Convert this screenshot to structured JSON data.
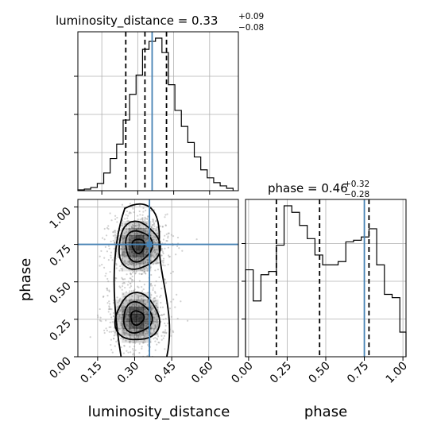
{
  "chart_data": [
    {
      "type": "histogram",
      "panel": "marginal-top-left",
      "title": {
        "text": "luminosity_distance = 0.33",
        "upper": "+0.09",
        "lower": "−0.08"
      },
      "x_range": [
        0.05,
        0.72
      ],
      "bins": [
        0.05,
        0.077,
        0.104,
        0.131,
        0.158,
        0.185,
        0.212,
        0.239,
        0.266,
        0.293,
        0.32,
        0.347,
        0.374,
        0.401,
        0.428,
        0.455,
        0.482,
        0.509,
        0.536,
        0.563,
        0.59,
        0.617,
        0.644,
        0.671,
        0.698
      ],
      "counts": [
        0.005,
        0.01,
        0.02,
        0.045,
        0.11,
        0.2,
        0.29,
        0.44,
        0.6,
        0.72,
        0.88,
        0.93,
        0.95,
        0.86,
        0.66,
        0.5,
        0.4,
        0.3,
        0.21,
        0.13,
        0.08,
        0.05,
        0.03,
        0.015
      ],
      "quantiles": [
        0.25,
        0.33,
        0.42
      ],
      "truth": 0.36,
      "grid": true
    },
    {
      "type": "heatmap",
      "panel": "joint",
      "x_range": [
        0.07,
        0.72
      ],
      "y_range": [
        0.0,
        1.05
      ],
      "xlabel": "luminosity_distance",
      "ylabel": "phase",
      "xticks": [
        "0.15",
        "0.30",
        "0.45",
        "0.60"
      ],
      "xtick_values": [
        0.15,
        0.3,
        0.45,
        0.6
      ],
      "yticks": [
        "0.00",
        "0.25",
        "0.50",
        "0.75",
        "1.00"
      ],
      "ytick_values": [
        0.0,
        0.25,
        0.5,
        0.75,
        1.0
      ],
      "modes": [
        {
          "x": 0.315,
          "y": 0.74,
          "sx": 0.045,
          "sy": 0.085
        },
        {
          "x": 0.31,
          "y": 0.26,
          "sx": 0.048,
          "sy": 0.085
        }
      ],
      "truth": {
        "x": 0.36,
        "y": 0.75
      },
      "grid": true
    },
    {
      "type": "histogram",
      "panel": "marginal-bottom-right",
      "title": {
        "text": "phase = 0.46",
        "upper": "+0.32",
        "lower": "−0.28"
      },
      "x_range": [
        -0.02,
        1.02
      ],
      "xlabel": "phase",
      "xticks": [
        "0.00",
        "0.25",
        "0.50",
        "0.75",
        "1.00"
      ],
      "xtick_values": [
        0.0,
        0.25,
        0.5,
        0.75,
        1.0
      ],
      "bins": [
        -0.02,
        0.03,
        0.08,
        0.13,
        0.18,
        0.23,
        0.28,
        0.33,
        0.38,
        0.43,
        0.48,
        0.53,
        0.58,
        0.63,
        0.68,
        0.73,
        0.78,
        0.83,
        0.88,
        0.93,
        0.98,
        1.02
      ],
      "counts": [
        0.53,
        0.34,
        0.5,
        0.52,
        0.68,
        0.92,
        0.88,
        0.8,
        0.72,
        0.62,
        0.56,
        0.56,
        0.58,
        0.7,
        0.71,
        0.73,
        0.78,
        0.56,
        0.38,
        0.36,
        0.15
      ],
      "quantiles": [
        0.18,
        0.46,
        0.78
      ],
      "truth": 0.75,
      "grid": true
    }
  ],
  "style": {
    "truth_color": "#4682b4",
    "line_color": "#000000",
    "grid_color": "#b0b0b0"
  }
}
